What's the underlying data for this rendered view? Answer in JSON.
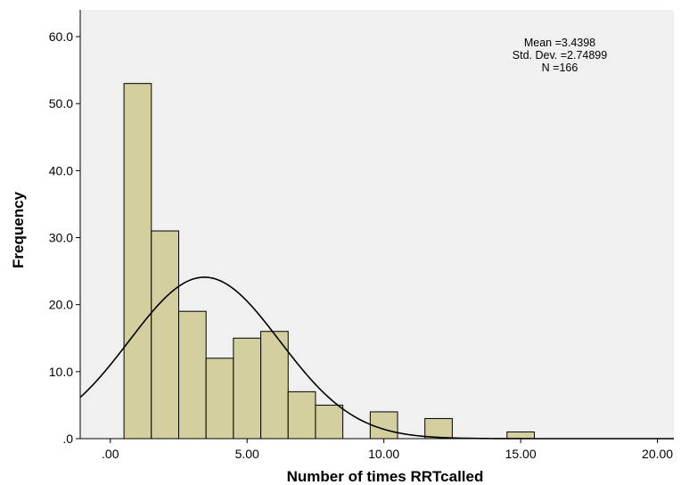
{
  "chart_data": {
    "type": "bar",
    "subtype": "histogram",
    "xlabel": "Number of times RRTcalled",
    "ylabel": "Frequency",
    "xlim": [
      -1.1,
      20.6
    ],
    "ylim": [
      0,
      64
    ],
    "x_ticks": [
      0,
      5,
      10,
      15,
      20
    ],
    "x_tick_labels": [
      ".00",
      "5.00",
      "10.00",
      "15.00",
      "20.00"
    ],
    "y_ticks": [
      0,
      10,
      20,
      30,
      40,
      50,
      60
    ],
    "y_tick_labels": [
      ".0",
      "10.0",
      "20.0",
      "30.0",
      "40.0",
      "50.0",
      "60.0"
    ],
    "bin_width": 1,
    "bins": [
      {
        "start": 0.5,
        "end": 1.5,
        "count": 53
      },
      {
        "start": 1.5,
        "end": 2.5,
        "count": 31
      },
      {
        "start": 2.5,
        "end": 3.5,
        "count": 19
      },
      {
        "start": 3.5,
        "end": 4.5,
        "count": 12
      },
      {
        "start": 4.5,
        "end": 5.5,
        "count": 15
      },
      {
        "start": 5.5,
        "end": 6.5,
        "count": 16
      },
      {
        "start": 6.5,
        "end": 7.5,
        "count": 7
      },
      {
        "start": 7.5,
        "end": 8.5,
        "count": 5
      },
      {
        "start": 9.5,
        "end": 10.5,
        "count": 4
      },
      {
        "start": 11.5,
        "end": 12.5,
        "count": 3
      },
      {
        "start": 14.5,
        "end": 15.5,
        "count": 1
      }
    ],
    "normal_curve": {
      "mean": 3.4398,
      "std_dev": 2.74899,
      "n": 166
    },
    "stats_lines": [
      "Mean =3.4398",
      "Std. Dev. =2.74899",
      "N =166"
    ],
    "legend_position": "top-right",
    "grid": false,
    "colors": {
      "plot_background": "#f0f0f0",
      "bar_fill": "#d4cf9e",
      "bar_stroke": "#000000",
      "curve": "#000000"
    }
  }
}
